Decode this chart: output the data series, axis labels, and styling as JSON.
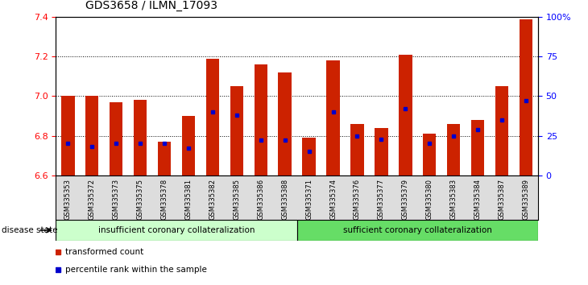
{
  "title": "GDS3658 / ILMN_17093",
  "samples": [
    "GSM335353",
    "GSM335372",
    "GSM335373",
    "GSM335375",
    "GSM335378",
    "GSM335381",
    "GSM335382",
    "GSM335385",
    "GSM335386",
    "GSM335388",
    "GSM335371",
    "GSM335374",
    "GSM335376",
    "GSM335377",
    "GSM335379",
    "GSM335380",
    "GSM335383",
    "GSM335384",
    "GSM335387",
    "GSM335389"
  ],
  "bar_values": [
    7.0,
    7.0,
    6.97,
    6.98,
    6.77,
    6.9,
    7.19,
    7.05,
    7.16,
    7.12,
    6.79,
    7.18,
    6.86,
    6.84,
    7.21,
    6.81,
    6.86,
    6.88,
    7.05,
    7.39
  ],
  "percentile_pct": [
    20,
    18,
    20,
    20,
    20,
    17,
    40,
    38,
    22,
    22,
    15,
    40,
    25,
    23,
    42,
    20,
    25,
    29,
    35,
    47
  ],
  "ylim_left": [
    6.6,
    7.4
  ],
  "ylim_right": [
    0,
    100
  ],
  "yticks_left": [
    6.6,
    6.8,
    7.0,
    7.2,
    7.4
  ],
  "yticks_right": [
    0,
    25,
    50,
    75,
    100
  ],
  "bar_color": "#CC2200",
  "percentile_color": "#0000CC",
  "insufficient_label": "insufficient coronary collateralization",
  "sufficient_label": "sufficient coronary collateralization",
  "insufficient_color": "#CCFFCC",
  "sufficient_color": "#66DD66",
  "disease_state_label": "disease state",
  "legend_bar_label": "transformed count",
  "legend_pct_label": "percentile rank within the sample",
  "background_color": "#DDDDDD",
  "plot_background": "#FFFFFF",
  "n_insufficient": 10,
  "n_sufficient": 10
}
